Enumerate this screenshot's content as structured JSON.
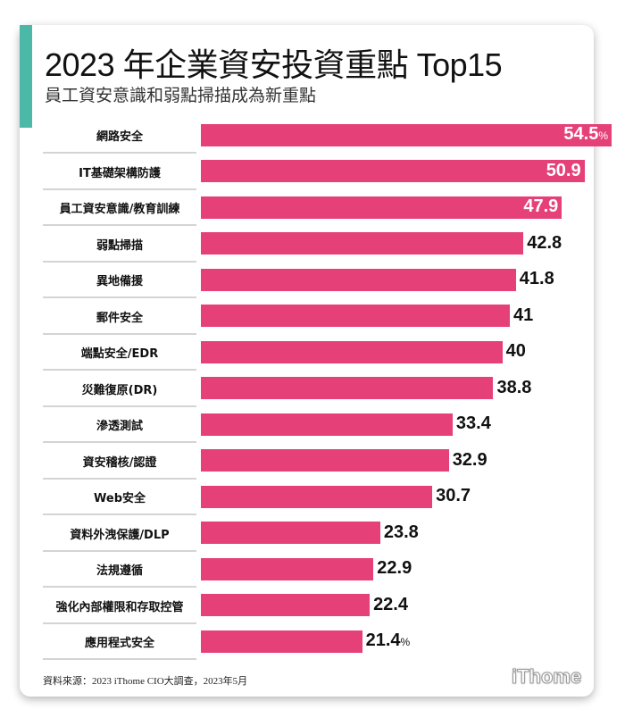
{
  "chart_data": {
    "type": "bar",
    "orientation": "horizontal",
    "title": "2023 年企業資安投資重點 Top15",
    "subtitle": "員工資安意識和弱點掃描成為新重點",
    "categories": [
      "網路安全",
      "IT基礎架構防護",
      "員工資安意識/教育訓練",
      "弱點掃描",
      "異地備援",
      "郵件安全",
      "端點安全/EDR",
      "災難復原(DR)",
      "滲透測試",
      "資安稽核/認證",
      "Web安全",
      "資料外洩保護/DLP",
      "法規遵循",
      "強化內部權限和存取控管",
      "應用程式安全"
    ],
    "values": [
      54.5,
      50.9,
      47.9,
      42.8,
      41.8,
      41,
      40,
      38.8,
      33.4,
      32.9,
      30.7,
      23.8,
      22.9,
      22.4,
      21.4
    ],
    "value_labels": [
      "54.5",
      "50.9",
      "47.9",
      "42.8",
      "41.8",
      "41",
      "40",
      "38.8",
      "33.4",
      "32.9",
      "30.7",
      "23.8",
      "22.9",
      "22.4",
      "21.4"
    ],
    "unit": "%",
    "bar_color": "#e64078",
    "accent_color": "#4cb8a8",
    "grid": false
  },
  "source": "資料來源：2023 iThome CIO大調查，2023年5月",
  "logo": "iThome"
}
